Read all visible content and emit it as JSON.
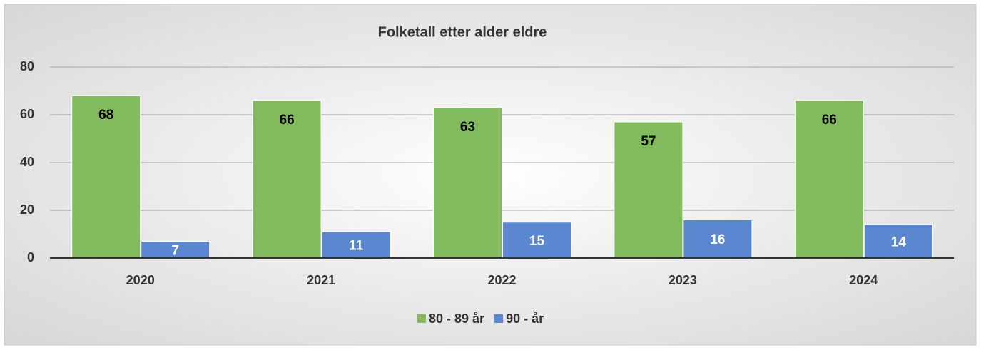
{
  "chart_data": {
    "type": "bar",
    "title": "Folketall etter alder eldre",
    "categories": [
      "2020",
      "2021",
      "2022",
      "2023",
      "2024"
    ],
    "series": [
      {
        "name": "80 - 89 år",
        "color": "#82bb5e",
        "values": [
          68,
          66,
          63,
          57,
          66
        ]
      },
      {
        "name": "90 - år",
        "color": "#5b87d0",
        "values": [
          7,
          11,
          15,
          16,
          14
        ]
      }
    ],
    "ylim": [
      0,
      80
    ],
    "yticks": [
      0,
      20,
      40,
      60,
      80
    ],
    "grid": true,
    "legend": "bottom"
  }
}
